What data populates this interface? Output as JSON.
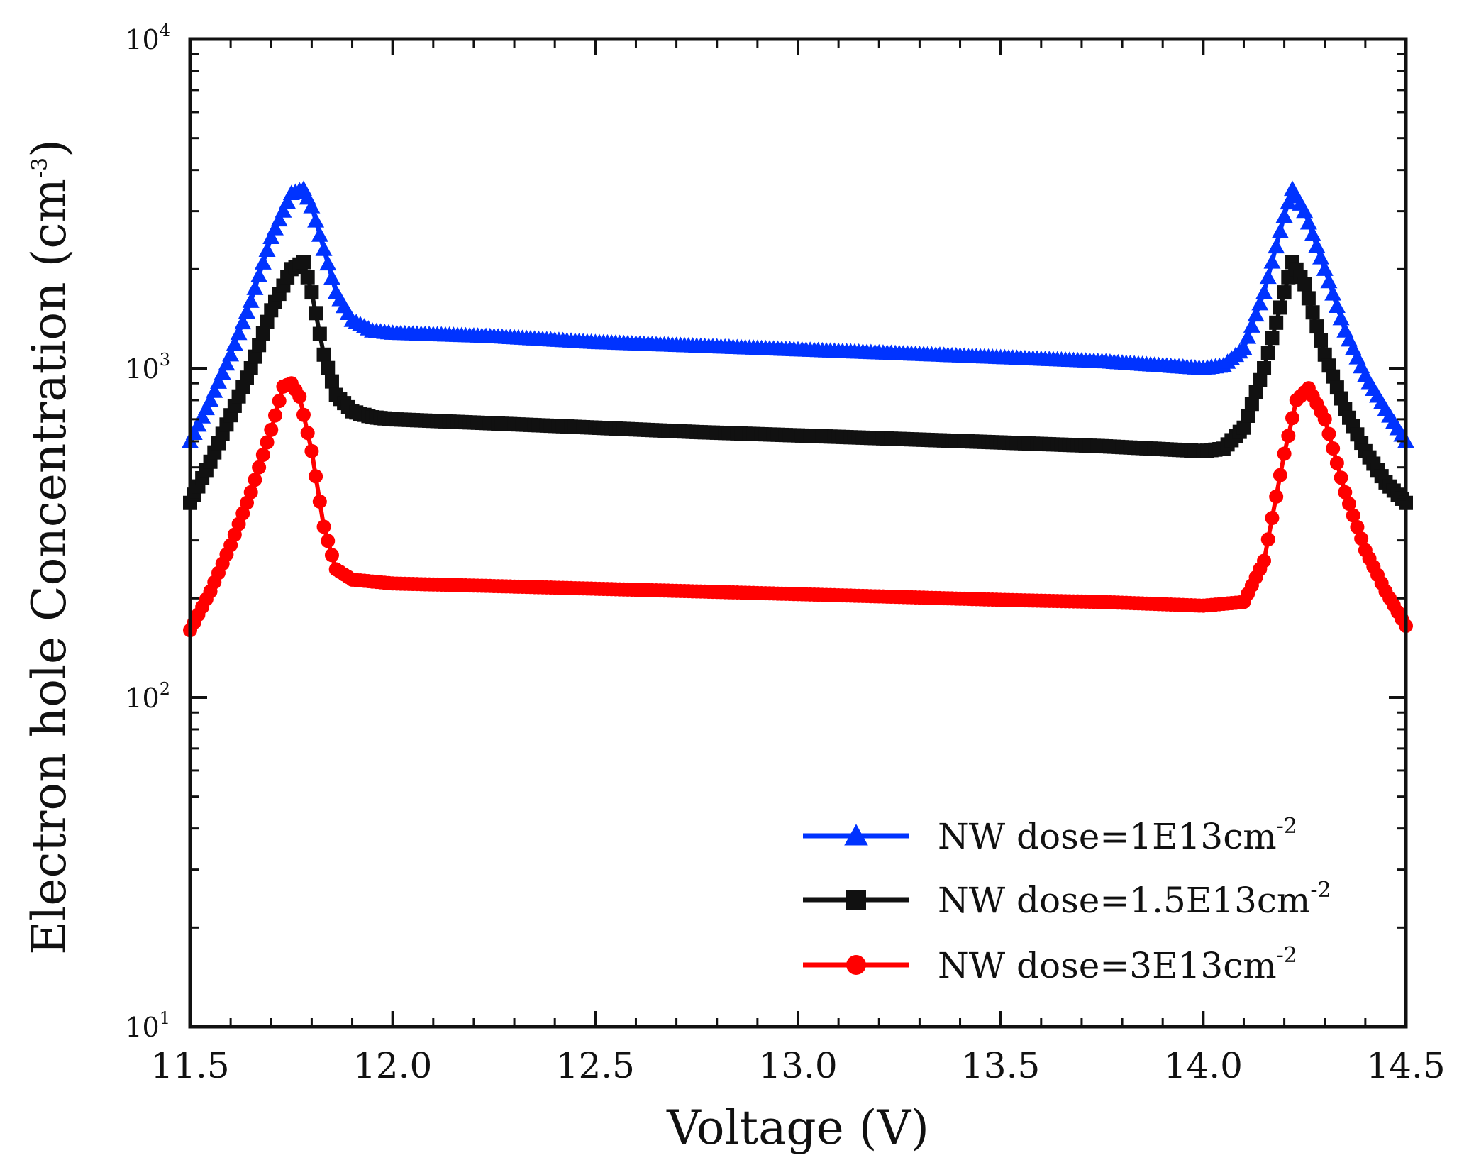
{
  "chart_data": {
    "type": "line",
    "title": "",
    "xlabel": "Voltage (V)",
    "ylabel": "Electron hole Concentration (cm",
    "ylabel_exponent": "-3",
    "ylabel_suffix": ")",
    "yscale": "log",
    "xlim": [
      11.5,
      14.5
    ],
    "ylim": [
      10,
      10000
    ],
    "grid": false,
    "legend_position": "lower-right",
    "x_ticks": [
      11.5,
      12.0,
      12.5,
      13.0,
      13.5,
      14.0,
      14.5
    ],
    "x_tick_labels": [
      "11.5",
      "12.0",
      "12.5",
      "13.0",
      "13.5",
      "14.0",
      "14.5"
    ],
    "y_ticks": [
      {
        "value": 10,
        "base": "10",
        "exp": "1"
      },
      {
        "value": 100,
        "base": "10",
        "exp": "2"
      },
      {
        "value": 1000,
        "base": "10",
        "exp": "3"
      },
      {
        "value": 10000,
        "base": "10",
        "exp": "4"
      }
    ],
    "series": [
      {
        "name": "NW dose=1E13cm",
        "legend_label": "NW dose=1E13cm",
        "legend_exponent": "-2",
        "color": "#0033ff",
        "marker": "triangle",
        "x": [
          11.5,
          11.55,
          11.6,
          11.65,
          11.7,
          11.75,
          11.78,
          11.8,
          11.83,
          11.86,
          11.9,
          11.95,
          12.0,
          12.25,
          12.5,
          12.75,
          13.0,
          13.25,
          13.5,
          13.75,
          14.0,
          14.05,
          14.1,
          14.15,
          14.2,
          14.22,
          14.25,
          14.3,
          14.35,
          14.4,
          14.45,
          14.5
        ],
        "y": [
          600,
          800,
          1100,
          1600,
          2500,
          3400,
          3500,
          3100,
          2300,
          1700,
          1400,
          1300,
          1280,
          1250,
          1200,
          1170,
          1140,
          1110,
          1080,
          1050,
          1000,
          1020,
          1150,
          1700,
          2900,
          3500,
          3000,
          2000,
          1300,
          950,
          750,
          600
        ]
      },
      {
        "name": "NW dose=1.5E13cm",
        "legend_label": "NW dose=1.5E13cm",
        "legend_exponent": "-2",
        "color": "#111111",
        "marker": "square",
        "x": [
          11.5,
          11.55,
          11.6,
          11.65,
          11.7,
          11.75,
          11.78,
          11.8,
          11.83,
          11.86,
          11.9,
          11.95,
          12.0,
          12.25,
          12.5,
          12.75,
          13.0,
          13.25,
          13.5,
          13.75,
          14.0,
          14.05,
          14.1,
          14.15,
          14.2,
          14.22,
          14.25,
          14.3,
          14.35,
          14.4,
          14.45,
          14.5
        ],
        "y": [
          390,
          520,
          720,
          1000,
          1500,
          2000,
          2100,
          1700,
          1100,
          830,
          740,
          710,
          700,
          680,
          660,
          640,
          625,
          610,
          595,
          580,
          560,
          570,
          660,
          1000,
          1700,
          2100,
          1800,
          1100,
          750,
          560,
          450,
          390
        ]
      },
      {
        "name": "NW dose=3E13cm",
        "legend_label": "NW dose=3E13cm",
        "legend_exponent": "-2",
        "color": "#ff0000",
        "marker": "circle",
        "x": [
          11.5,
          11.55,
          11.6,
          11.65,
          11.7,
          11.73,
          11.75,
          11.77,
          11.8,
          11.83,
          11.86,
          11.9,
          11.95,
          12.0,
          12.25,
          12.5,
          12.75,
          13.0,
          13.25,
          13.5,
          13.75,
          14.0,
          14.1,
          14.15,
          14.2,
          14.23,
          14.26,
          14.3,
          14.35,
          14.4,
          14.45,
          14.5
        ],
        "y": [
          160,
          210,
          290,
          420,
          650,
          880,
          900,
          820,
          560,
          330,
          245,
          228,
          225,
          222,
          218,
          214,
          210,
          206,
          202,
          198,
          195,
          190,
          195,
          260,
          550,
          800,
          870,
          700,
          420,
          280,
          210,
          165
        ]
      }
    ]
  }
}
